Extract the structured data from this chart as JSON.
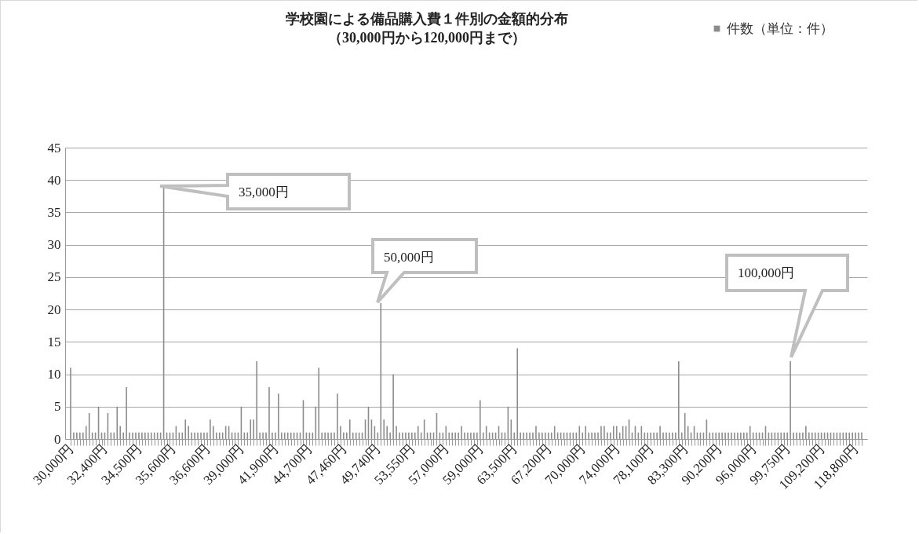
{
  "chart_data": {
    "type": "bar",
    "title": "学校園による備品購入費１件別の金額的分布",
    "subtitle": "（30,000円から120,000円まで）",
    "categories": [
      "30,000円",
      null,
      null,
      null,
      null,
      null,
      null,
      null,
      null,
      null,
      null,
      "32,400円",
      null,
      null,
      null,
      null,
      null,
      null,
      null,
      null,
      null,
      null,
      "34,500円",
      null,
      null,
      null,
      null,
      null,
      null,
      null,
      null,
      null,
      null,
      "35,600円",
      null,
      null,
      null,
      null,
      null,
      null,
      null,
      null,
      null,
      null,
      "36,600円",
      null,
      null,
      null,
      null,
      null,
      null,
      null,
      null,
      null,
      null,
      "39,000円",
      null,
      null,
      null,
      null,
      null,
      null,
      null,
      null,
      null,
      null,
      "41,900円",
      null,
      null,
      null,
      null,
      null,
      null,
      null,
      null,
      null,
      null,
      "44,700円",
      null,
      null,
      null,
      null,
      null,
      null,
      null,
      null,
      null,
      null,
      "47,460円",
      null,
      null,
      null,
      null,
      null,
      null,
      null,
      null,
      null,
      null,
      "49,740円",
      null,
      null,
      null,
      null,
      null,
      null,
      null,
      null,
      null,
      null,
      "53,550円",
      null,
      null,
      null,
      null,
      null,
      null,
      null,
      null,
      null,
      null,
      "57,000円",
      null,
      null,
      null,
      null,
      null,
      null,
      null,
      null,
      null,
      null,
      "59,000円",
      null,
      null,
      null,
      null,
      null,
      null,
      null,
      null,
      null,
      null,
      "63,500円",
      null,
      null,
      null,
      null,
      null,
      null,
      null,
      null,
      null,
      null,
      "67,200円",
      null,
      null,
      null,
      null,
      null,
      null,
      null,
      null,
      null,
      null,
      "70,000円",
      null,
      null,
      null,
      null,
      null,
      null,
      null,
      null,
      null,
      null,
      "74,000円",
      null,
      null,
      null,
      null,
      null,
      null,
      null,
      null,
      null,
      null,
      "78,100円",
      null,
      null,
      null,
      null,
      null,
      null,
      null,
      null,
      null,
      null,
      "83,300円",
      null,
      null,
      null,
      null,
      null,
      null,
      null,
      null,
      null,
      null,
      "90,200円",
      null,
      null,
      null,
      null,
      null,
      null,
      null,
      null,
      null,
      null,
      "96,000円",
      null,
      null,
      null,
      null,
      null,
      null,
      null,
      null,
      null,
      null,
      "99,750円",
      null,
      null,
      null,
      null,
      null,
      null,
      null,
      null,
      null,
      null,
      "109,200円",
      null,
      null,
      null,
      null,
      null,
      null,
      null,
      null,
      null,
      null,
      "118,800円",
      null,
      null
    ],
    "series": [
      {
        "name": "件数（単位：件）",
        "color": "#8c8c8c",
        "values": [
          11,
          1,
          1,
          1,
          1,
          2,
          4,
          1,
          1,
          5,
          1,
          1,
          4,
          1,
          1,
          5,
          2,
          1,
          8,
          1,
          1,
          1,
          1,
          1,
          1,
          1,
          1,
          1,
          1,
          1,
          39,
          1,
          1,
          1,
          2,
          1,
          1,
          3,
          2,
          1,
          1,
          1,
          1,
          1,
          1,
          3,
          2,
          1,
          1,
          1,
          2,
          2,
          1,
          1,
          1,
          5,
          1,
          1,
          3,
          3,
          12,
          1,
          1,
          1,
          8,
          1,
          1,
          7,
          1,
          1,
          1,
          1,
          1,
          1,
          1,
          6,
          1,
          1,
          1,
          5,
          11,
          1,
          1,
          1,
          1,
          1,
          7,
          2,
          1,
          1,
          3,
          1,
          1,
          1,
          1,
          3,
          5,
          3,
          2,
          1,
          21,
          3,
          2,
          1,
          10,
          2,
          1,
          1,
          1,
          1,
          1,
          1,
          2,
          1,
          3,
          1,
          1,
          1,
          4,
          1,
          1,
          2,
          1,
          1,
          1,
          1,
          2,
          1,
          1,
          1,
          1,
          1,
          6,
          1,
          2,
          1,
          1,
          1,
          2,
          1,
          1,
          5,
          3,
          1,
          14,
          1,
          1,
          1,
          1,
          1,
          2,
          1,
          1,
          1,
          1,
          1,
          2,
          1,
          1,
          1,
          1,
          1,
          1,
          1,
          2,
          1,
          2,
          1,
          1,
          1,
          1,
          2,
          2,
          1,
          1,
          2,
          2,
          1,
          2,
          2,
          3,
          1,
          2,
          1,
          2,
          1,
          1,
          1,
          1,
          1,
          2,
          1,
          1,
          1,
          1,
          1,
          12,
          1,
          4,
          2,
          1,
          2,
          1,
          1,
          1,
          3,
          1,
          1,
          1,
          1,
          1,
          1,
          1,
          1,
          1,
          1,
          1,
          1,
          1,
          2,
          1,
          1,
          1,
          1,
          2,
          1,
          1,
          1,
          1,
          1,
          1,
          1,
          12,
          1,
          1,
          1,
          1,
          2,
          1,
          1,
          1,
          1,
          1,
          1,
          1,
          1,
          1,
          1,
          1,
          1,
          1,
          1,
          1,
          1,
          1,
          1
        ]
      }
    ],
    "ylim": [
      0,
      45
    ],
    "yticks": [
      0,
      5,
      10,
      15,
      20,
      25,
      30,
      35,
      40,
      45
    ],
    "grid": "y",
    "legend": "top right",
    "annotations": [
      "35,000円",
      "50,000円",
      "100,000円"
    ]
  }
}
